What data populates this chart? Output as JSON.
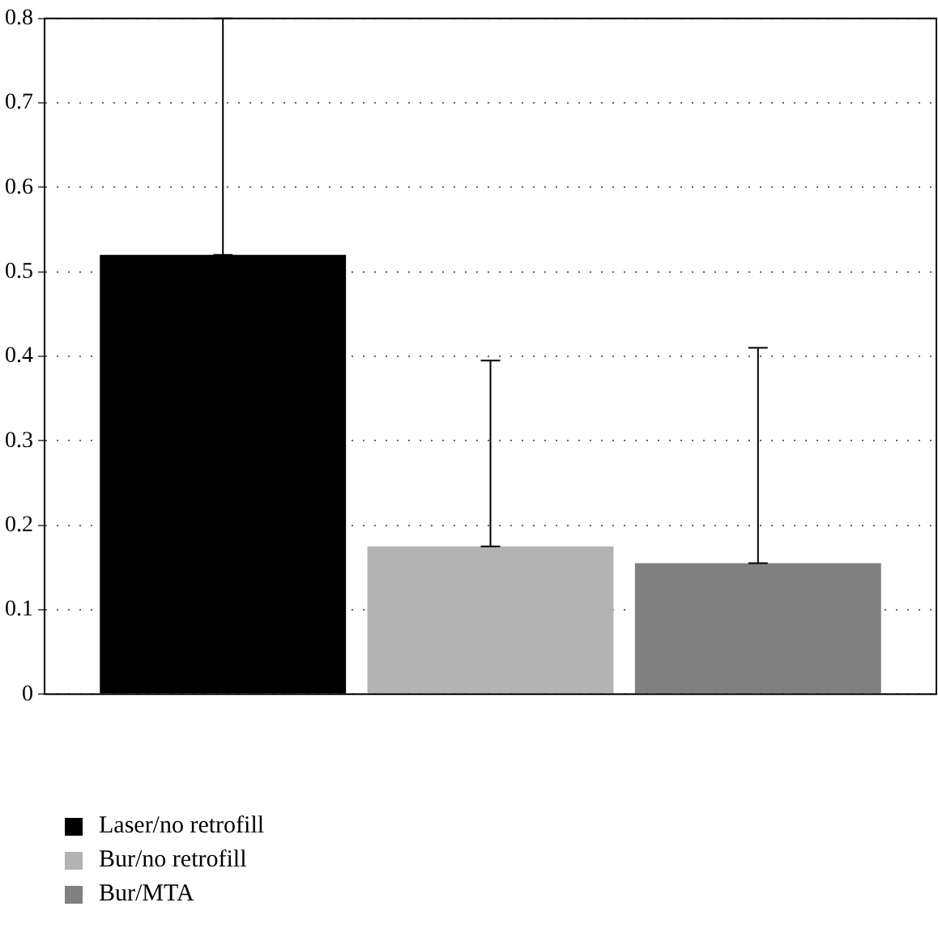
{
  "chart_data": {
    "type": "bar",
    "categories": [
      null
    ],
    "series": [
      {
        "name": "Laser/no retrofill",
        "color": "#000000",
        "values": [
          0.52
        ],
        "errors": [
          [
            0.52,
            0.8
          ]
        ]
      },
      {
        "name": "Bur/no retrofill",
        "color": "#b3b3b3",
        "values": [
          0.175
        ],
        "errors": [
          [
            0.175,
            0.395
          ]
        ]
      },
      {
        "name": "Bur/MTA",
        "color": "#808080",
        "values": [
          0.155
        ],
        "errors": [
          [
            0.155,
            0.41
          ]
        ]
      }
    ],
    "ylim": [
      0,
      0.8
    ],
    "yticks": [
      0,
      0.1,
      0.2,
      0.3,
      0.4,
      0.5,
      0.6,
      0.7,
      0.8
    ],
    "grid": "y",
    "legend": "bottom left"
  }
}
